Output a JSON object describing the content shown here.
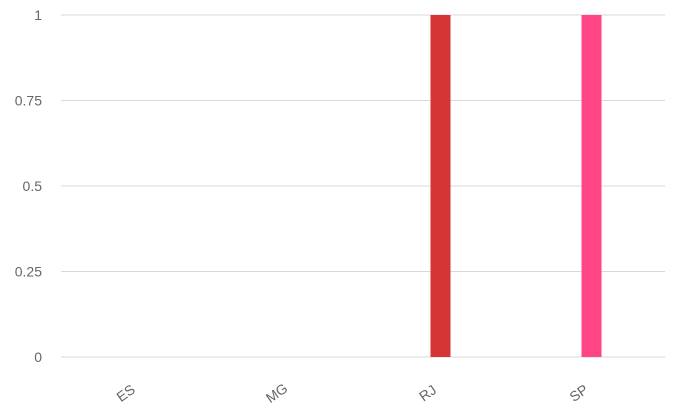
{
  "chart_data": {
    "type": "bar",
    "categories": [
      "ES",
      "MG",
      "RJ",
      "SP"
    ],
    "values": [
      0,
      0,
      1,
      1
    ],
    "bar_colors": [
      "#e8e8e8",
      "#e8e8e8",
      "#d63535",
      "#ff4586"
    ],
    "ylim": [
      0,
      1
    ],
    "yticks": [
      "0",
      "0.25",
      "0.5",
      "0.75",
      "1"
    ],
    "grid": true,
    "title": "",
    "xlabel": "",
    "ylabel": ""
  }
}
